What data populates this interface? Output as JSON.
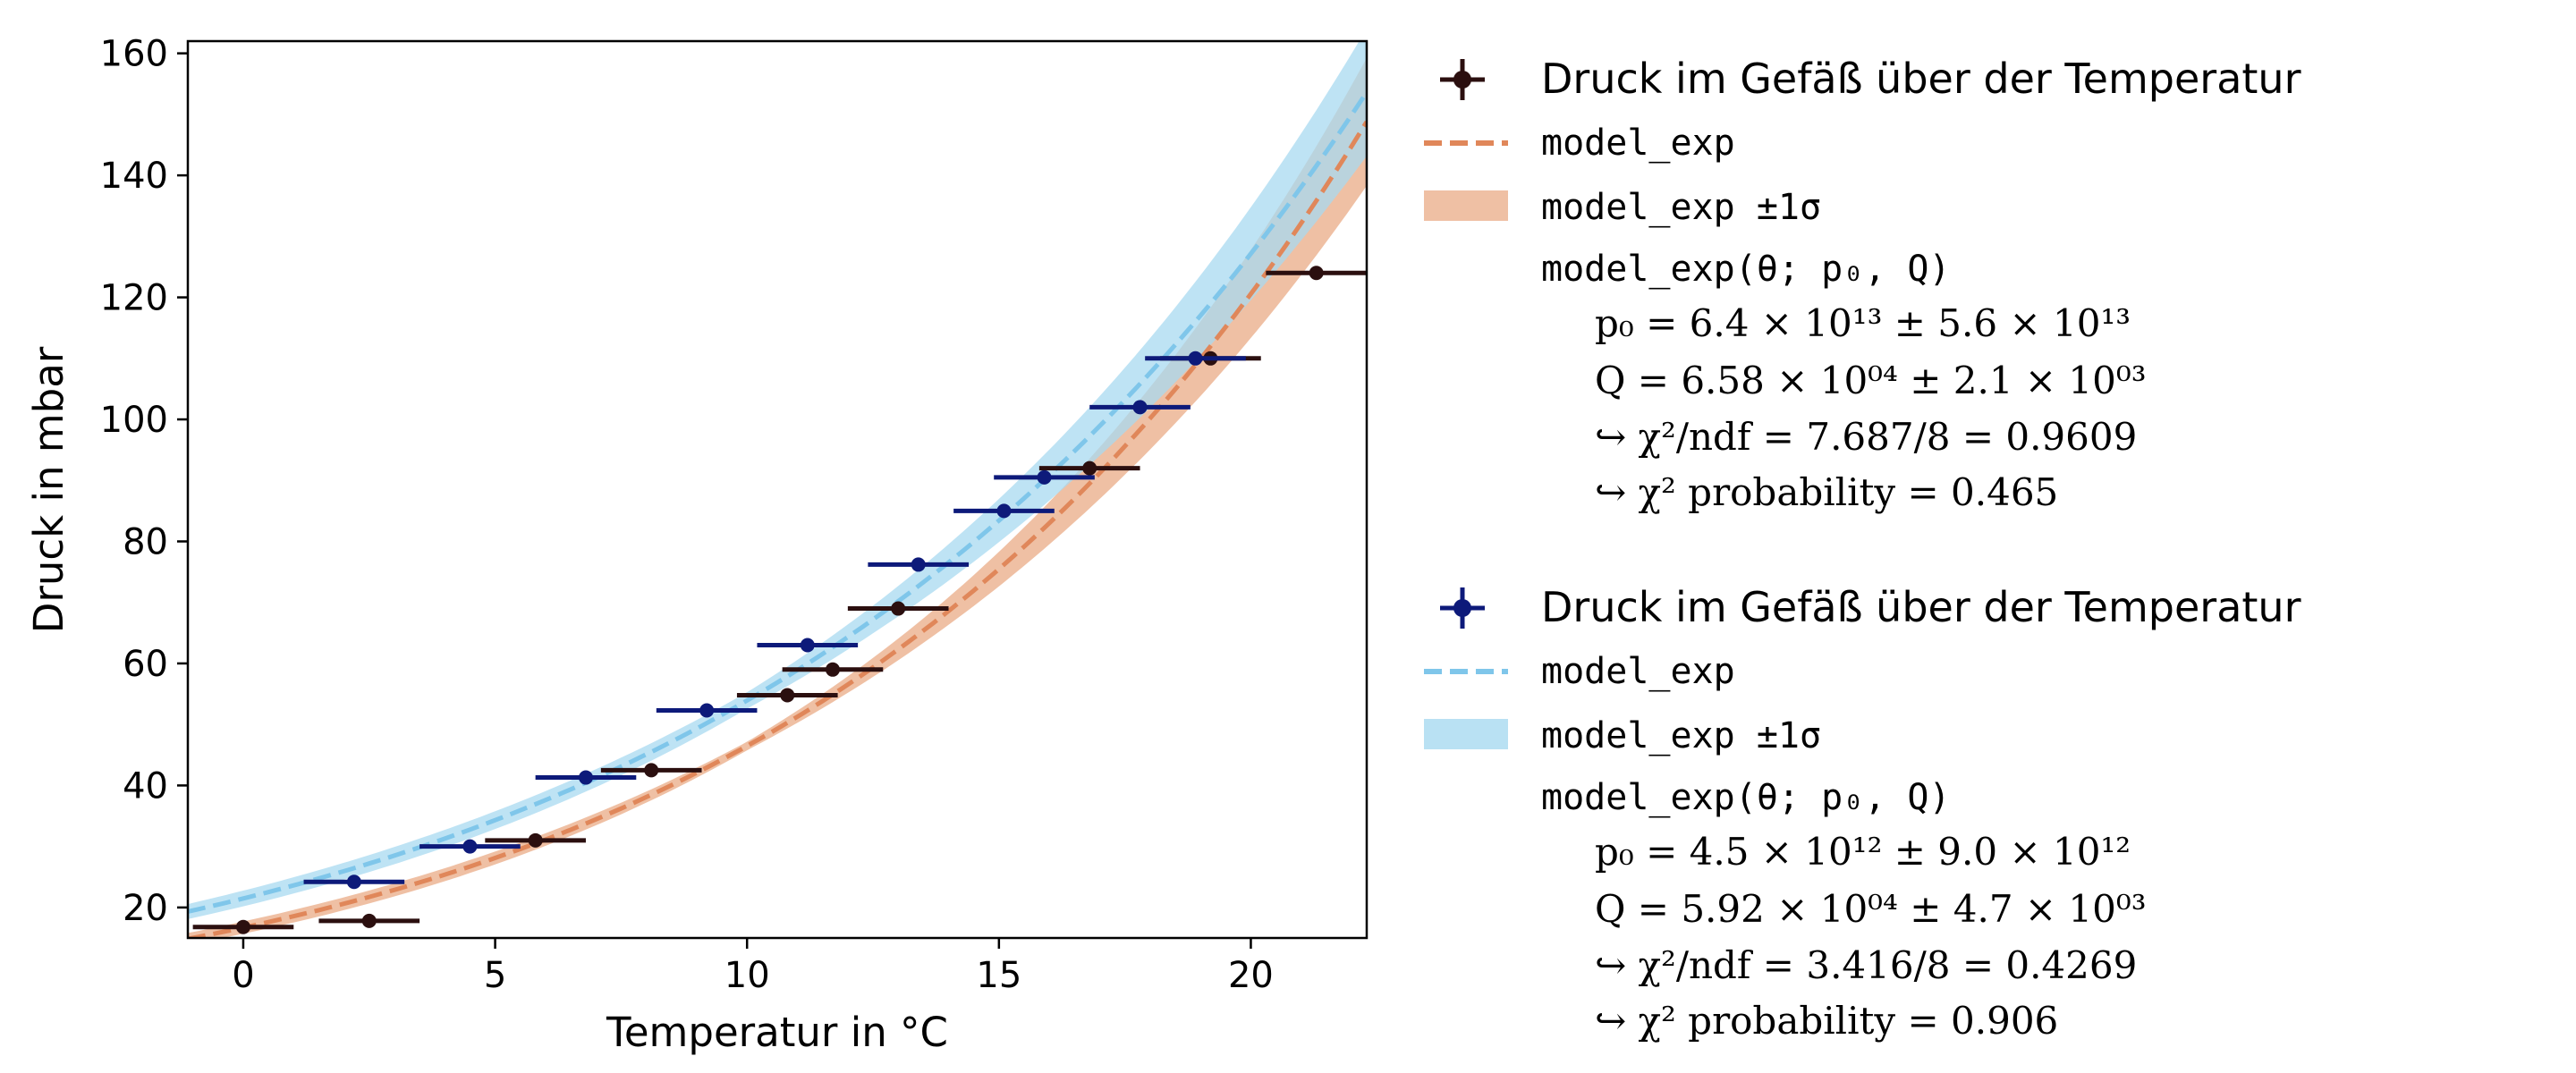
{
  "chart_data": {
    "type": "scatter",
    "title": "",
    "xlabel": "Temperatur in °C",
    "ylabel": "Druck in mbar",
    "xlim": [
      -1.1,
      22.3
    ],
    "ylim": [
      15,
      162
    ],
    "xticks": [
      0,
      5,
      10,
      15,
      20
    ],
    "yticks": [
      20,
      40,
      60,
      80,
      100,
      120,
      140,
      160
    ],
    "grid": false,
    "legend_position": "outside-right",
    "series": [
      {
        "name": "Druck im Gefäß über der Temperatur",
        "color": "#2b0f0f",
        "band_color": "#e8a57e",
        "model_color": "#e0875a",
        "x": [
          0.0,
          2.5,
          5.8,
          8.1,
          10.8,
          11.7,
          13.0,
          16.8,
          19.2,
          21.3
        ],
        "y": [
          16.8,
          17.8,
          31.0,
          42.5,
          54.8,
          59.0,
          69.0,
          92.0,
          110.0,
          124.0
        ],
        "xerr": 1.0,
        "model": {
          "p0": 64000000000000.0,
          "Q": 65800
        },
        "model_label": "model_exp",
        "band_label": "model_exp ±1σ",
        "params_title": "model_exp(θ; p₀, Q)",
        "params": [
          "p₀ = 6.4 × 10¹³ ± 5.6 × 10¹³",
          "Q = 6.58 × 10⁰⁴ ± 2.1 × 10⁰³",
          "↪ χ²/ndf = 7.687/8 = 0.9609",
          "↪ χ² probability = 0.465"
        ]
      },
      {
        "name": "Druck im Gefäß über der Temperatur",
        "color": "#0d1a7a",
        "band_color": "#a8daf0",
        "model_color": "#7fc6ea",
        "x": [
          2.2,
          4.5,
          6.8,
          9.2,
          11.2,
          13.4,
          15.1,
          15.9,
          17.8,
          18.9
        ],
        "y": [
          24.2,
          30.0,
          41.3,
          52.3,
          63.0,
          76.2,
          85.0,
          90.5,
          102.0,
          110.0
        ],
        "xerr": 1.0,
        "model": {
          "p0": 4500000000000.0,
          "Q": 59200
        },
        "model_label": "model_exp",
        "band_label": "model_exp ±1σ",
        "params_title": "model_exp(θ; p₀, Q)",
        "params": [
          "p₀ = 4.5 × 10¹² ± 9.0 × 10¹²",
          "Q = 5.92 × 10⁰⁴ ± 4.7 × 10⁰³",
          "↪ χ²/ndf = 3.416/8 = 0.4269",
          "↪ χ² probability = 0.906"
        ]
      }
    ]
  }
}
